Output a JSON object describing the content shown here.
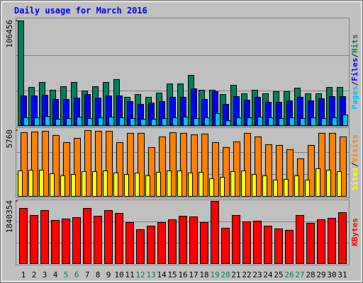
{
  "chart_data": [
    {
      "type": "bar",
      "title": "Daily usage for March 2016",
      "legend_separator": "/",
      "ylim": [
        0,
        106456
      ],
      "yticks": [
        106456
      ],
      "series": [
        {
          "name": "Hits",
          "color": "#00805c",
          "values": [
            106456,
            38800,
            43900,
            36000,
            39600,
            43900,
            35200,
            39600,
            43900,
            46800,
            28800,
            31600,
            28800,
            33100,
            42400,
            42400,
            51100,
            36000,
            36000,
            31600,
            41000,
            32400,
            36000,
            32400,
            34500,
            34500,
            38100,
            32400,
            32400,
            38800,
            38800
          ]
        },
        {
          "name": "Files",
          "color": "#0000ff",
          "values": [
            30200,
            30200,
            30900,
            26600,
            26600,
            28000,
            31600,
            28000,
            30200,
            30200,
            24400,
            21600,
            23000,
            24400,
            28800,
            28800,
            37400,
            26600,
            34500,
            21600,
            29500,
            25900,
            28800,
            23700,
            23700,
            25200,
            28800,
            25200,
            27300,
            29500,
            29500
          ]
        },
        {
          "name": "Pages",
          "color": "#00c0ff",
          "values": [
            7900,
            7900,
            9300,
            6500,
            7200,
            8600,
            7200,
            7900,
            8600,
            7900,
            7200,
            6500,
            6500,
            7200,
            7900,
            8600,
            7200,
            7900,
            12200,
            5000,
            7900,
            7900,
            8600,
            7900,
            7200,
            7900,
            7200,
            7900,
            7200,
            7900,
            10800
          ]
        }
      ]
    },
    {
      "type": "bar",
      "legend_separator": "/",
      "ylim": [
        0,
        5760
      ],
      "yticks": [
        5760
      ],
      "series": [
        {
          "name": "Visits",
          "color": "#ff8000",
          "values": [
            5580,
            5640,
            5700,
            5330,
            4710,
            5080,
            5760,
            5700,
            5700,
            4710,
            5520,
            5520,
            4280,
            5210,
            5580,
            5520,
            5390,
            5460,
            4710,
            4280,
            4770,
            5520,
            5210,
            4530,
            4460,
            4090,
            3290,
            4460,
            5520,
            5520,
            5210
          ]
        },
        {
          "name": "Sites",
          "color": "#ffff00",
          "values": [
            2230,
            2290,
            2290,
            1980,
            1800,
            1920,
            2170,
            2170,
            2230,
            2050,
            1920,
            2050,
            1800,
            2110,
            2230,
            2230,
            2050,
            2110,
            1550,
            1670,
            2170,
            2230,
            1920,
            1800,
            1430,
            1490,
            1800,
            1430,
            2420,
            2290,
            2170
          ]
        }
      ]
    },
    {
      "type": "bar",
      "ylim": [
        0,
        1840354
      ],
      "yticks": [
        1840354
      ],
      "categories": [
        "1",
        "2",
        "3",
        "4",
        "5",
        "6",
        "7",
        "8",
        "9",
        "10",
        "11",
        "12",
        "13",
        "14",
        "15",
        "16",
        "17",
        "18",
        "19",
        "20",
        "21",
        "22",
        "23",
        "24",
        "25",
        "26",
        "27",
        "28",
        "29",
        "30",
        "31"
      ],
      "category_colors": [
        "#000000",
        "#000000",
        "#000000",
        "#000000",
        "#00805c",
        "#00805c",
        "#000000",
        "#000000",
        "#000000",
        "#000000",
        "#000000",
        "#00805c",
        "#00805c",
        "#000000",
        "#000000",
        "#000000",
        "#000000",
        "#000000",
        "#00805c",
        "#00805c",
        "#000000",
        "#000000",
        "#000000",
        "#000000",
        "#000000",
        "#00805c",
        "#00805c",
        "#000000",
        "#000000",
        "#000000",
        "#000000"
      ],
      "series": [
        {
          "name": "KBytes",
          "color": "#ff0000",
          "values": [
            1631000,
            1422000,
            1568000,
            1276000,
            1318000,
            1359000,
            1631000,
            1401000,
            1568000,
            1485000,
            1213000,
            1004000,
            1108000,
            1213000,
            1297000,
            1401000,
            1380000,
            1213000,
            1840354,
            1046000,
            1422000,
            1234000,
            1255000,
            1108000,
            1025000,
            983000,
            1422000,
            1192000,
            1297000,
            1338000,
            1506000
          ]
        }
      ]
    }
  ]
}
